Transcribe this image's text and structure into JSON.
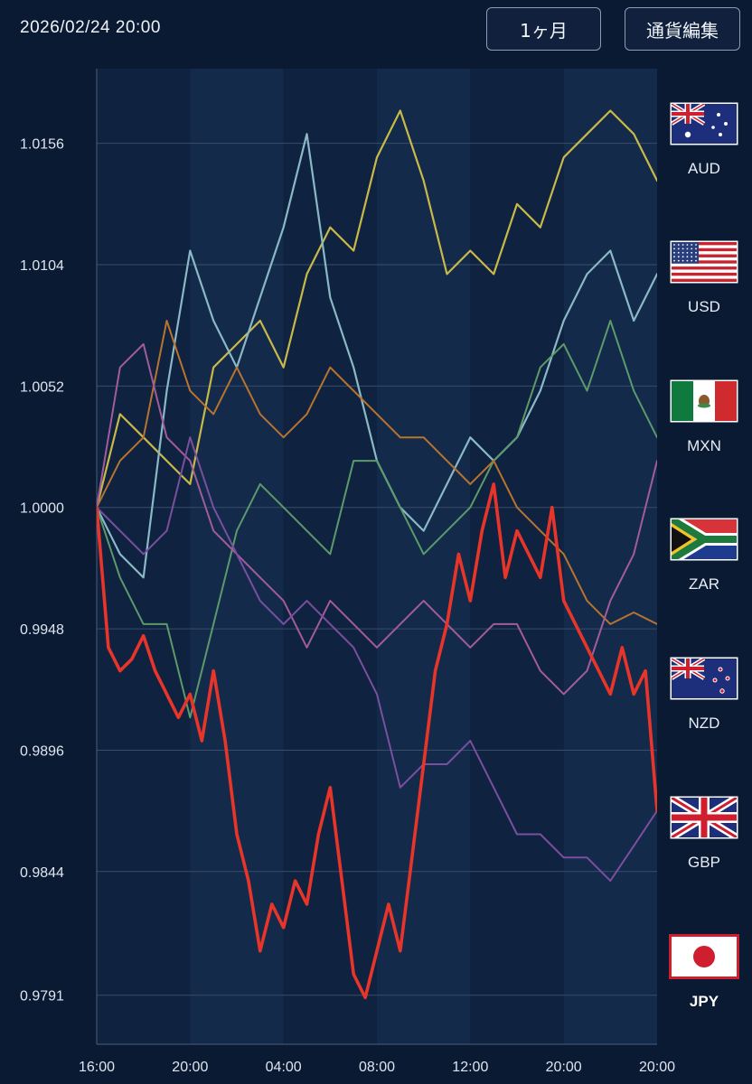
{
  "header": {
    "timestamp": "2026/02/24 20:00",
    "period_label": "1ヶ月",
    "edit_label": "通貨編集"
  },
  "currencies": [
    {
      "code": "AUD",
      "flag": "australia-flag-icon",
      "color": "#c9b949"
    },
    {
      "code": "USD",
      "flag": "usa-flag-icon",
      "color": "#8ab8c4"
    },
    {
      "code": "MXN",
      "flag": "mexico-flag-icon",
      "color": "#5c9a6a"
    },
    {
      "code": "ZAR",
      "flag": "south-africa-flag-icon",
      "color": "#b8742e"
    },
    {
      "code": "NZD",
      "flag": "new-zealand-flag-icon",
      "color": "#a35c9a"
    },
    {
      "code": "GBP",
      "flag": "uk-flag-icon",
      "color": "#7a4f9e"
    },
    {
      "code": "JPY",
      "flag": "japan-flag-icon",
      "color": "#e8352a",
      "active": true
    }
  ],
  "chart_data": {
    "type": "line",
    "ylim": [
      0.977,
      1.0188
    ],
    "yticks": [
      "1.0156",
      "1.0104",
      "1.0052",
      "1.0000",
      "0.9948",
      "0.9896",
      "0.9844",
      "0.9791"
    ],
    "ytick_values": [
      1.0156,
      1.0104,
      1.0052,
      1.0,
      0.9948,
      0.9896,
      0.9844,
      0.9791
    ],
    "xticks": [
      "16:00",
      "20:00",
      "04:00",
      "08:00",
      "12:00",
      "20:00",
      "20:00"
    ],
    "xlim": [
      0,
      48
    ],
    "grid": true,
    "series": [
      {
        "name": "AUD",
        "color": "#c9b949",
        "width": 2.2,
        "x": [
          0,
          2,
          4,
          6,
          8,
          10,
          12,
          14,
          16,
          18,
          20,
          22,
          24,
          26,
          28,
          30,
          32,
          34,
          36,
          38,
          40,
          42,
          44,
          46,
          48
        ],
        "values": [
          1.0,
          1.004,
          1.003,
          1.002,
          1.001,
          1.006,
          1.007,
          1.008,
          1.006,
          1.01,
          1.012,
          1.011,
          1.015,
          1.017,
          1.014,
          1.01,
          1.011,
          1.01,
          1.013,
          1.012,
          1.015,
          1.016,
          1.017,
          1.016,
          1.014
        ]
      },
      {
        "name": "USD",
        "color": "#8ab8c4",
        "width": 2.2,
        "x": [
          0,
          2,
          4,
          6,
          8,
          10,
          12,
          14,
          16,
          18,
          20,
          22,
          24,
          26,
          28,
          30,
          32,
          34,
          36,
          38,
          40,
          42,
          44,
          46,
          48
        ],
        "values": [
          1.0,
          0.998,
          0.997,
          1.005,
          1.011,
          1.008,
          1.006,
          1.009,
          1.012,
          1.016,
          1.009,
          1.006,
          1.002,
          1.0,
          0.999,
          1.001,
          1.003,
          1.002,
          1.003,
          1.005,
          1.008,
          1.01,
          1.011,
          1.008,
          1.01
        ]
      },
      {
        "name": "MXN",
        "color": "#5c9a6a",
        "width": 2.0,
        "x": [
          0,
          2,
          4,
          6,
          8,
          10,
          12,
          14,
          16,
          18,
          20,
          22,
          24,
          26,
          28,
          30,
          32,
          34,
          36,
          38,
          40,
          42,
          44,
          46,
          48
        ],
        "values": [
          1.0,
          0.997,
          0.995,
          0.995,
          0.991,
          0.995,
          0.999,
          1.001,
          1.0,
          0.999,
          0.998,
          1.002,
          1.002,
          1.0,
          0.998,
          0.999,
          1.0,
          1.002,
          1.003,
          1.006,
          1.007,
          1.005,
          1.008,
          1.005,
          1.003
        ]
      },
      {
        "name": "ZAR",
        "color": "#b8742e",
        "width": 2.0,
        "x": [
          0,
          2,
          4,
          6,
          8,
          10,
          12,
          14,
          16,
          18,
          20,
          22,
          24,
          26,
          28,
          30,
          32,
          34,
          36,
          38,
          40,
          42,
          44,
          46,
          48
        ],
        "values": [
          1.0,
          1.002,
          1.003,
          1.008,
          1.005,
          1.004,
          1.006,
          1.004,
          1.003,
          1.004,
          1.006,
          1.005,
          1.004,
          1.003,
          1.003,
          1.002,
          1.001,
          1.002,
          1.0,
          0.999,
          0.998,
          0.996,
          0.995,
          0.9955,
          0.995
        ]
      },
      {
        "name": "NZD",
        "color": "#a35c9a",
        "width": 2.0,
        "x": [
          0,
          2,
          4,
          6,
          8,
          10,
          12,
          14,
          16,
          18,
          20,
          22,
          24,
          26,
          28,
          30,
          32,
          34,
          36,
          38,
          40,
          42,
          44,
          46,
          48
        ],
        "values": [
          1.0,
          1.006,
          1.007,
          1.003,
          1.002,
          0.999,
          0.998,
          0.997,
          0.996,
          0.994,
          0.996,
          0.995,
          0.994,
          0.995,
          0.996,
          0.995,
          0.994,
          0.995,
          0.995,
          0.993,
          0.992,
          0.993,
          0.996,
          0.998,
          1.002
        ]
      },
      {
        "name": "GBP",
        "color": "#7a4f9e",
        "width": 2.0,
        "x": [
          0,
          2,
          4,
          6,
          8,
          10,
          12,
          14,
          16,
          18,
          20,
          22,
          24,
          26,
          28,
          30,
          32,
          34,
          36,
          38,
          40,
          42,
          44,
          46,
          48
        ],
        "values": [
          1.0,
          0.999,
          0.998,
          0.999,
          1.003,
          1.0,
          0.998,
          0.996,
          0.995,
          0.996,
          0.995,
          0.994,
          0.992,
          0.988,
          0.989,
          0.989,
          0.99,
          0.988,
          0.986,
          0.986,
          0.985,
          0.985,
          0.984,
          0.9855,
          0.987
        ]
      },
      {
        "name": "JPY",
        "color": "#e8352a",
        "width": 3.6,
        "x": [
          0,
          1,
          2,
          3,
          4,
          5,
          6,
          7,
          8,
          9,
          10,
          11,
          12,
          13,
          14,
          15,
          16,
          17,
          18,
          19,
          20,
          21,
          22,
          23,
          24,
          25,
          26,
          27,
          28,
          29,
          30,
          31,
          32,
          33,
          34,
          35,
          36,
          37,
          38,
          39,
          40,
          41,
          42,
          43,
          44,
          45,
          46,
          47,
          48
        ],
        "values": [
          1.0,
          0.994,
          0.993,
          0.9935,
          0.9945,
          0.993,
          0.992,
          0.991,
          0.992,
          0.99,
          0.993,
          0.99,
          0.986,
          0.984,
          0.981,
          0.983,
          0.982,
          0.984,
          0.983,
          0.986,
          0.988,
          0.984,
          0.98,
          0.979,
          0.981,
          0.983,
          0.981,
          0.985,
          0.989,
          0.993,
          0.995,
          0.998,
          0.996,
          0.999,
          1.001,
          0.997,
          0.999,
          0.998,
          0.997,
          1.0,
          0.996,
          0.995,
          0.994,
          0.993,
          0.992,
          0.994,
          0.992,
          0.993,
          0.987
        ]
      }
    ]
  }
}
